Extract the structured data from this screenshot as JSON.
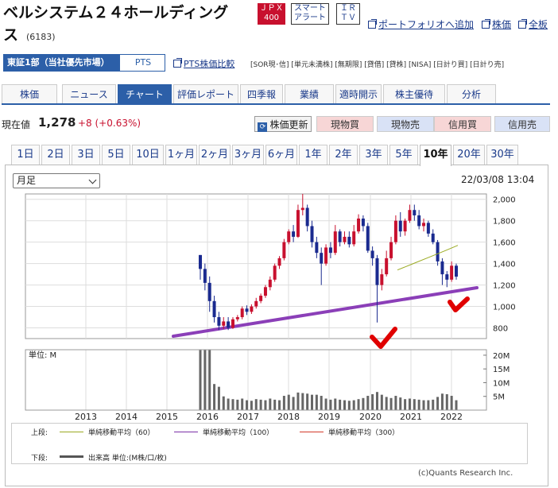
{
  "header": {
    "company_name": "ベルシステム２４ホールディングス",
    "code": "(6183)",
    "badges": {
      "jpx_line1": "ＪＰＸ",
      "jpx_line2": "400",
      "smart_line1": "スマート",
      "smart_line2": "アラート",
      "ir_line1": "ＩＲ",
      "ir_line2": "ＴＶ"
    },
    "links": {
      "portfolio": "ポートフォリオへ追加",
      "price": "株価",
      "all": "全板"
    }
  },
  "market": {
    "primary": "東証1部（当社優先市場）",
    "pts": "PTS",
    "pts_compare": "PTS株価比較",
    "tags": "[SOR現･信] [単元未満株] [無期限] [貸借] [貸株] [NISA] [日計り買] [日計り売]"
  },
  "nav": {
    "tabs": [
      "株価",
      "ニュース",
      "チャート",
      "評価レポート",
      "四季報",
      "業績",
      "適時開示",
      "株主優待",
      "分析"
    ],
    "active": "チャート"
  },
  "price": {
    "label": "現在値",
    "value": "1,278",
    "change": "+8 (+0.63%)",
    "refresh": "株価更新",
    "buttons": [
      "現物買",
      "現物売",
      "信用買",
      "信用売"
    ]
  },
  "periods": {
    "items": [
      "1日",
      "2日",
      "3日",
      "5日",
      "10日",
      "1ヶ月",
      "2ヶ月",
      "3ヶ月",
      "6ヶ月",
      "1年",
      "2年",
      "3年",
      "5年",
      "10年",
      "20年",
      "30年"
    ],
    "active": "10年"
  },
  "chart_controls": {
    "interval": "月足",
    "timestamp": "22/03/08 13:04"
  },
  "chart_data": {
    "type": "candlestick",
    "price_ticks": [
      "2,000",
      "1,800",
      "1,600",
      "1,400",
      "1,200",
      "1,000",
      "800"
    ],
    "price_tick_values": [
      2000,
      1800,
      1600,
      1400,
      1200,
      1000,
      800
    ],
    "volume_unit": "単位: M",
    "volume_ticks": [
      "20M",
      "15M",
      "10M",
      "5M"
    ],
    "volume_tick_values": [
      20,
      15,
      10,
      5
    ],
    "x_ticks": [
      "2013",
      "2014",
      "2015",
      "2016",
      "2017",
      "2018",
      "2019",
      "2020",
      "2021",
      "2022"
    ],
    "candles": [
      [
        1480,
        1350,
        1250,
        1480,
        1300
      ],
      [
        1350,
        1220,
        1150,
        1400,
        1250
      ],
      [
        1220,
        1050,
        950,
        1280,
        1100
      ],
      [
        1050,
        900,
        850,
        1100,
        950
      ],
      [
        900,
        820,
        780,
        950,
        850
      ],
      [
        820,
        860,
        790,
        900,
        500
      ],
      [
        860,
        800,
        780,
        900,
        420
      ],
      [
        800,
        880,
        790,
        900,
        400
      ],
      [
        880,
        900,
        860,
        920,
        380
      ],
      [
        900,
        980,
        880,
        1000,
        420
      ],
      [
        980,
        950,
        920,
        1010,
        360
      ],
      [
        950,
        1000,
        930,
        1020,
        340
      ],
      [
        1000,
        1050,
        980,
        1080,
        400
      ],
      [
        1050,
        1100,
        1030,
        1120,
        380
      ],
      [
        1100,
        1180,
        1080,
        1200,
        360
      ],
      [
        1180,
        1250,
        1150,
        1280,
        420
      ],
      [
        1250,
        1380,
        1230,
        1400,
        380
      ],
      [
        1380,
        1450,
        1350,
        1470,
        360
      ],
      [
        1450,
        1600,
        1430,
        1630,
        520
      ],
      [
        1600,
        1700,
        1580,
        1720,
        560
      ],
      [
        1700,
        1650,
        1600,
        1760,
        480
      ],
      [
        1650,
        1900,
        1640,
        1950,
        640
      ],
      [
        1900,
        1920,
        1850,
        2050,
        620
      ],
      [
        1920,
        1750,
        1700,
        1950,
        600
      ],
      [
        1750,
        1600,
        1550,
        1800,
        560
      ],
      [
        1600,
        1500,
        1450,
        1650,
        560
      ],
      [
        1500,
        1400,
        1200,
        1550,
        520
      ],
      [
        1400,
        1550,
        1380,
        1580,
        420
      ],
      [
        1550,
        1500,
        1450,
        1600,
        380
      ],
      [
        1500,
        1700,
        1480,
        1760,
        420
      ],
      [
        1700,
        1600,
        1560,
        1720,
        380
      ],
      [
        1600,
        1650,
        1580,
        1700,
        360
      ],
      [
        1650,
        1580,
        1550,
        1700,
        340
      ],
      [
        1580,
        1700,
        1560,
        1760,
        360
      ],
      [
        1700,
        1820,
        1680,
        1860,
        400
      ],
      [
        1820,
        1750,
        1700,
        1850,
        440
      ],
      [
        1750,
        1520,
        1500,
        1780,
        520
      ],
      [
        1520,
        1450,
        1380,
        1560,
        580
      ],
      [
        1450,
        1200,
        850,
        1480,
        660
      ],
      [
        1200,
        1300,
        1150,
        1350,
        560
      ],
      [
        1300,
        1450,
        1280,
        1520,
        480
      ],
      [
        1450,
        1600,
        1430,
        1650,
        440
      ],
      [
        1600,
        1800,
        1580,
        1850,
        520
      ],
      [
        1800,
        1700,
        1650,
        1880,
        460
      ],
      [
        1700,
        1800,
        1660,
        1820,
        400
      ],
      [
        1800,
        1900,
        1780,
        1950,
        420
      ],
      [
        1900,
        1850,
        1800,
        1950,
        400
      ],
      [
        1850,
        1750,
        1720,
        1900,
        380
      ],
      [
        1750,
        1780,
        1700,
        1820,
        360
      ],
      [
        1780,
        1680,
        1650,
        1800,
        360
      ],
      [
        1680,
        1600,
        1580,
        1720,
        380
      ],
      [
        1600,
        1420,
        1380,
        1620,
        480
      ],
      [
        1420,
        1300,
        1200,
        1450,
        600
      ],
      [
        1300,
        1250,
        1180,
        1330,
        580
      ],
      [
        1250,
        1380,
        1230,
        1420,
        520
      ],
      [
        1380,
        1278,
        1250,
        1400,
        360
      ]
    ],
    "ma60": [
      [
        1400,
        1300
      ],
      [
        1450,
        1360
      ],
      [
        1500,
        1420
      ],
      [
        1540,
        1480
      ],
      [
        1555,
        1530
      ]
    ],
    "trendline": [
      [
        0,
        750
      ],
      [
        100,
        1210
      ]
    ]
  },
  "legend": {
    "upper_label": "上段:",
    "lower_label": "下段:",
    "ma60": "単純移動平均（60）",
    "ma100": "単純移動平均（100）",
    "ma300": "単純移動平均（300）",
    "volume": "出来高 単位:(M株/口/枚)",
    "colors": {
      "ma60": "#9aaa22",
      "ma100": "#7b2fa8",
      "ma300": "#d43a2a",
      "up": "#c8102e",
      "down": "#1a2a8f",
      "trend": "#8b3fb8",
      "check": "#e00000"
    }
  },
  "copyright": "(c)Quants Research Inc."
}
